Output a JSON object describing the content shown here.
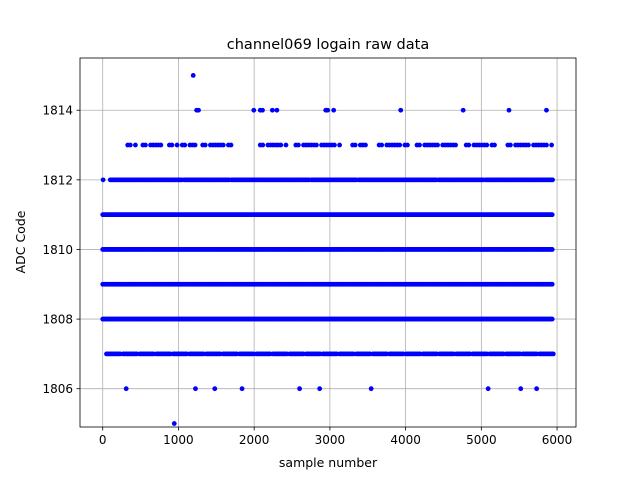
{
  "chart_data": {
    "type": "scatter",
    "title": "channel069 logain raw data",
    "xlabel": "sample number",
    "ylabel": "ADC Code",
    "xlim": [
      -300,
      6250
    ],
    "ylim": [
      1804.9,
      1815.5
    ],
    "xticks": [
      0,
      1000,
      2000,
      3000,
      4000,
      5000,
      6000
    ],
    "yticks": [
      1806,
      1808,
      1810,
      1812,
      1814
    ],
    "grid": true,
    "marker_color": "#0000ff",
    "x_range": [
      0,
      5950
    ],
    "dense_levels": [
      1808,
      1809,
      1810,
      1811
    ],
    "level_1812": {
      "x_start": 100,
      "x_end": 5950,
      "gap_every": 210
    },
    "level_1807": {
      "x_start": 30,
      "x_end": 5950,
      "gap_every": 85
    },
    "level_1813_ranges": [
      [
        330,
        440
      ],
      [
        530,
        800
      ],
      [
        880,
        1000
      ],
      [
        1050,
        1250
      ],
      [
        1320,
        1700
      ],
      [
        2080,
        2450
      ],
      [
        2550,
        3150
      ],
      [
        3300,
        3500
      ],
      [
        3650,
        4050
      ],
      [
        4150,
        4700
      ],
      [
        4800,
        5200
      ],
      [
        5350,
        5950
      ]
    ],
    "sparse_points": [
      {
        "x": 1195,
        "y": 1815
      },
      {
        "x": 1240,
        "y": 1814
      },
      {
        "x": 1265,
        "y": 1814
      },
      {
        "x": 1995,
        "y": 1814
      },
      {
        "x": 2080,
        "y": 1814
      },
      {
        "x": 2110,
        "y": 1814
      },
      {
        "x": 2240,
        "y": 1814
      },
      {
        "x": 2300,
        "y": 1814
      },
      {
        "x": 2945,
        "y": 1814
      },
      {
        "x": 2970,
        "y": 1814
      },
      {
        "x": 3050,
        "y": 1814
      },
      {
        "x": 3935,
        "y": 1814
      },
      {
        "x": 4760,
        "y": 1814
      },
      {
        "x": 5365,
        "y": 1814
      },
      {
        "x": 5860,
        "y": 1814
      },
      {
        "x": 5,
        "y": 1812
      },
      {
        "x": 310,
        "y": 1806
      },
      {
        "x": 1225,
        "y": 1806
      },
      {
        "x": 1480,
        "y": 1806
      },
      {
        "x": 1840,
        "y": 1806
      },
      {
        "x": 2600,
        "y": 1806
      },
      {
        "x": 2865,
        "y": 1806
      },
      {
        "x": 3545,
        "y": 1806
      },
      {
        "x": 5090,
        "y": 1806
      },
      {
        "x": 5520,
        "y": 1806
      },
      {
        "x": 5730,
        "y": 1806
      },
      {
        "x": 945,
        "y": 1805
      }
    ]
  }
}
